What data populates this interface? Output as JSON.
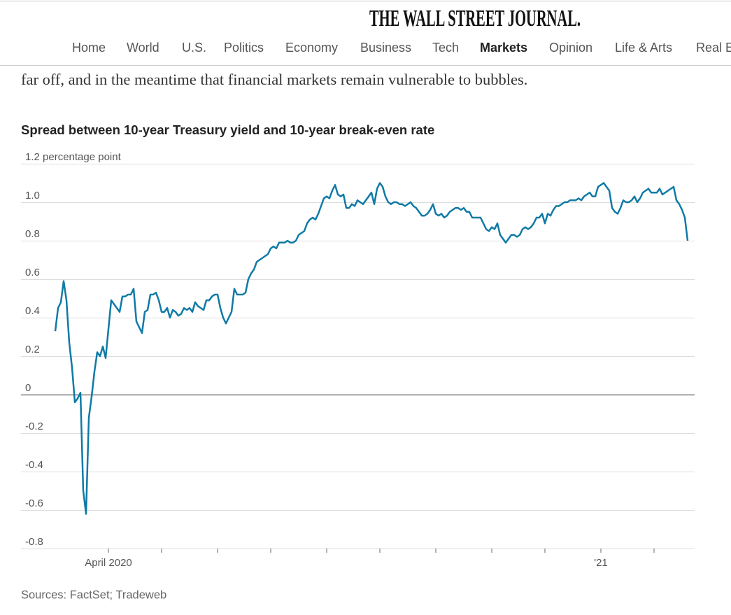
{
  "header": {
    "masthead": "THE WALL STREET JOURNAL.",
    "nav": [
      "Home",
      "World",
      "U.S.",
      "Politics",
      "Economy",
      "Business",
      "Tech",
      "Markets",
      "Opinion",
      "Life & Arts",
      "Real E"
    ],
    "active_index": 7
  },
  "article": {
    "text": "far off, and in the meantime that financial markets remain vulnerable to bubbles."
  },
  "chart_data": {
    "type": "line",
    "title": "Spread between 10-year Treasury yield and 10-year break-even rate",
    "source": "Sources: FactSet; Tradeweb",
    "color": "#0f7aa6",
    "grid": true,
    "ylim": [
      -0.8,
      1.2
    ],
    "yticks": [
      {
        "value": 1.2,
        "label": "1.2 percentage point"
      },
      {
        "value": 1,
        "label": "1.0"
      },
      0.8,
      0.6,
      0.4,
      0.2,
      0,
      -0.2,
      -0.4,
      -0.6,
      -0.8
    ],
    "xticks": [
      19,
      38,
      58,
      77,
      97,
      116,
      136,
      156,
      175,
      195,
      214
    ],
    "categories": [
      null,
      null,
      null,
      null,
      null,
      null,
      null,
      null,
      null,
      null,
      null,
      null,
      null,
      null,
      null,
      null,
      null,
      null,
      null,
      "April 2020",
      null,
      null,
      null,
      null,
      null,
      null,
      null,
      null,
      null,
      null,
      null,
      null,
      null,
      null,
      null,
      null,
      null,
      null,
      null,
      null,
      null,
      null,
      null,
      null,
      null,
      null,
      null,
      null,
      null,
      null,
      null,
      null,
      null,
      null,
      null,
      null,
      null,
      null,
      null,
      null,
      null,
      null,
      null,
      null,
      null,
      null,
      null,
      null,
      null,
      null,
      null,
      null,
      null,
      null,
      null,
      null,
      null,
      null,
      null,
      null,
      null,
      null,
      null,
      null,
      null,
      null,
      null,
      null,
      null,
      null,
      null,
      null,
      null,
      null,
      null,
      null,
      null,
      null,
      null,
      null,
      null,
      null,
      null,
      null,
      null,
      null,
      null,
      null,
      null,
      null,
      null,
      null,
      null,
      null,
      null,
      null,
      null,
      null,
      null,
      null,
      null,
      null,
      null,
      null,
      null,
      null,
      null,
      null,
      null,
      null,
      null,
      null,
      null,
      null,
      null,
      null,
      null,
      null,
      null,
      null,
      null,
      null,
      null,
      null,
      null,
      null,
      null,
      null,
      null,
      null,
      null,
      null,
      null,
      null,
      null,
      null,
      null,
      null,
      null,
      null,
      null,
      null,
      null,
      null,
      null,
      null,
      null,
      null,
      null,
      null,
      null,
      null,
      null,
      null,
      null,
      null,
      null,
      null,
      null,
      null,
      null,
      null,
      null,
      null,
      null,
      null,
      null,
      null,
      null,
      null,
      null,
      null,
      null,
      null,
      null,
      "'21",
      null,
      null,
      null,
      null,
      null,
      null,
      null,
      null,
      null,
      null,
      null,
      null,
      null,
      null,
      null,
      null,
      null,
      null,
      null,
      null,
      null,
      null,
      null,
      null,
      null,
      null,
      null,
      null,
      null,
      null,
      null
    ],
    "values": [
      0.33,
      0.45,
      0.48,
      0.59,
      0.49,
      0.27,
      0.14,
      -0.04,
      -0.02,
      0.01,
      -0.5,
      -0.62,
      -0.12,
      -0.01,
      0.12,
      0.22,
      0.2,
      0.25,
      0.19,
      0.34,
      0.49,
      0.47,
      0.45,
      0.43,
      0.51,
      0.51,
      0.52,
      0.52,
      0.55,
      0.38,
      0.35,
      0.32,
      0.43,
      0.44,
      0.52,
      0.52,
      0.53,
      0.49,
      0.43,
      0.43,
      0.45,
      0.4,
      0.44,
      0.43,
      0.41,
      0.42,
      0.45,
      0.44,
      0.45,
      0.43,
      0.48,
      0.46,
      0.45,
      0.44,
      0.49,
      0.49,
      0.51,
      0.52,
      0.52,
      0.45,
      0.4,
      0.37,
      0.4,
      0.43,
      0.55,
      0.52,
      0.52,
      0.52,
      0.53,
      0.6,
      0.63,
      0.65,
      0.69,
      0.7,
      0.71,
      0.72,
      0.73,
      0.76,
      0.77,
      0.76,
      0.79,
      0.79,
      0.79,
      0.8,
      0.79,
      0.79,
      0.8,
      0.83,
      0.84,
      0.85,
      0.89,
      0.91,
      0.92,
      0.91,
      0.94,
      0.98,
      1.02,
      1.03,
      1.02,
      1.06,
      1.09,
      1.04,
      1.03,
      1.04,
      0.97,
      0.97,
      0.99,
      0.98,
      1.01,
      1.0,
      0.99,
      1.01,
      1.03,
      1.05,
      0.99,
      1.07,
      1.1,
      1.08,
      1.03,
      1.0,
      0.99,
      1.0,
      1.0,
      0.99,
      0.99,
      0.98,
      0.99,
      1.0,
      0.98,
      0.97,
      0.95,
      0.93,
      0.93,
      0.94,
      0.96,
      0.99,
      0.94,
      0.93,
      0.94,
      0.92,
      0.93,
      0.95,
      0.96,
      0.97,
      0.97,
      0.96,
      0.97,
      0.95,
      0.95,
      0.92,
      0.92,
      0.92,
      0.92,
      0.89,
      0.86,
      0.85,
      0.87,
      0.86,
      0.89,
      0.83,
      0.81,
      0.79,
      0.81,
      0.83,
      0.83,
      0.82,
      0.83,
      0.86,
      0.87,
      0.86,
      0.87,
      0.89,
      0.92,
      0.92,
      0.94,
      0.89,
      0.94,
      0.93,
      0.96,
      0.98,
      0.98,
      0.99,
      1.0,
      1.0,
      1.01,
      1.01,
      1.01,
      1.02,
      1.01,
      1.03,
      1.04,
      1.05,
      1.03,
      1.03,
      1.08,
      1.09,
      1.1,
      1.08,
      1.06,
      0.97,
      0.95,
      0.94,
      0.97,
      1.01,
      1.0,
      1.0,
      1.01,
      1.03,
      1.0,
      1.02,
      1.05,
      1.06,
      1.07,
      1.05,
      1.05,
      1.05,
      1.07,
      1.04,
      1.05,
      1.06,
      1.07,
      1.08,
      1.01,
      0.99,
      0.96,
      0.92,
      0.8
    ]
  }
}
